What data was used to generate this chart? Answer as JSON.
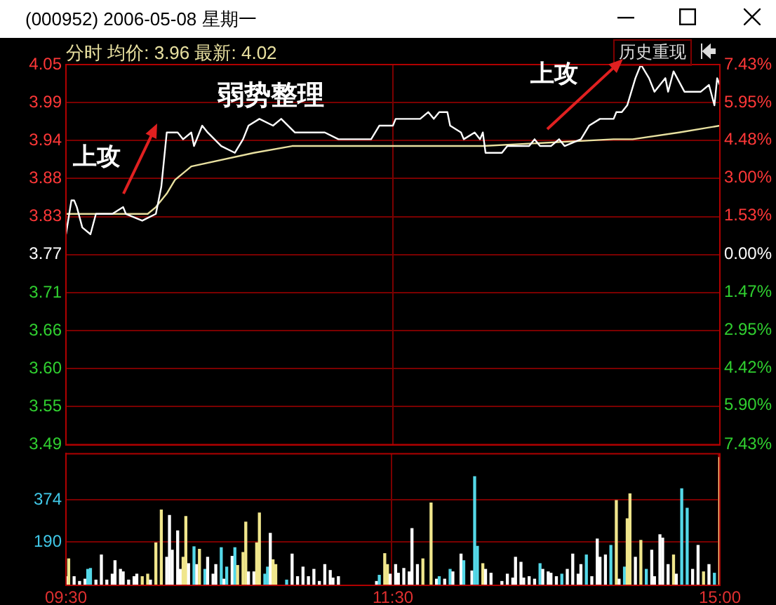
{
  "chart_data": [
    {
      "type": "line",
      "title": "(000952) 2006-05-08 星期一",
      "subtitle": "分时 均价: 3.96 最新: 4.02",
      "annotations": [
        "历史重现",
        "弱势整理",
        "上攻",
        "上攻"
      ],
      "categories": [
        null,
        null,
        null,
        null,
        null,
        null,
        null,
        null,
        null,
        null,
        null,
        null,
        null,
        null,
        null,
        null,
        null,
        null,
        null,
        null,
        null,
        null,
        null,
        null,
        null,
        null,
        null,
        null,
        null,
        null,
        null,
        null,
        null,
        null,
        null,
        null,
        null,
        null,
        null,
        null,
        null,
        null,
        null,
        null,
        null,
        null,
        null,
        null,
        null,
        null,
        null,
        null,
        null,
        null,
        null,
        null,
        null,
        null,
        null,
        null,
        null,
        null,
        null,
        null,
        null,
        null,
        null,
        null,
        null,
        null,
        null,
        null,
        null,
        null,
        null,
        null,
        null,
        null,
        null,
        null,
        null,
        null,
        null,
        null,
        null,
        null,
        null,
        null,
        null,
        null,
        null,
        null,
        null,
        null,
        null,
        null,
        null,
        null,
        null,
        null,
        null,
        null,
        null,
        null,
        null,
        null,
        null,
        null,
        null,
        null,
        null,
        null,
        null,
        null,
        null,
        null,
        null,
        null,
        null,
        null,
        null,
        null,
        null,
        null,
        null,
        null,
        null,
        null,
        null,
        null,
        null,
        null,
        null,
        null,
        null,
        null,
        null,
        null,
        null,
        null,
        null,
        null,
        null,
        null,
        null,
        null,
        null,
        null,
        null,
        null,
        null,
        null,
        null,
        null,
        null,
        null,
        null,
        null,
        null,
        null,
        null,
        null,
        null,
        null,
        null,
        null,
        null,
        null,
        null,
        null,
        null,
        null,
        null,
        null,
        null,
        null,
        null,
        null,
        null,
        null,
        null,
        null,
        null,
        null,
        null,
        null,
        null,
        null,
        null,
        null,
        null,
        null,
        null,
        null,
        null,
        null,
        null,
        null,
        null,
        null,
        null,
        null,
        null,
        null,
        null,
        null,
        null,
        null,
        null,
        null,
        null,
        null,
        null,
        null,
        null,
        null,
        null,
        null,
        null,
        null,
        null,
        null,
        null,
        null,
        null,
        null,
        null,
        null,
        null,
        null,
        null,
        null,
        null,
        null,
        null,
        null,
        null,
        null,
        null,
        null,
        null
      ],
      "ylim": [
        3.49,
        4.05
      ],
      "yticks": [
        4.05,
        {
          "value": 3.994,
          "label": "3.99"
        },
        {
          "value": 3.938,
          "label": "3.94"
        },
        {
          "value": 3.882,
          "label": "3.88"
        },
        {
          "value": 3.826,
          "label": "3.83"
        },
        3.77,
        {
          "value": 3.714,
          "label": "3.71"
        },
        {
          "value": 3.658,
          "label": "3.66"
        },
        {
          "value": 3.602,
          "label": "3.60"
        },
        {
          "value": 3.546,
          "label": "3.55"
        },
        3.49
      ],
      "y2lim": [
        -7.43,
        7.43
      ],
      "y2ticks": [
        {
          "value": 7.43,
          "label": "7.43%"
        },
        {
          "value": 5.95,
          "label": "5.95%"
        },
        {
          "value": 4.48,
          "label": "4.48%"
        },
        {
          "value": 3,
          "label": "3.00%"
        },
        {
          "value": 1.53,
          "label": "1.53%"
        },
        {
          "value": 0,
          "label": "0.00%"
        },
        {
          "value": -1.47,
          "label": "1.47%"
        },
        {
          "value": -2.95,
          "label": "2.95%"
        },
        {
          "value": -4.42,
          "label": "4.42%"
        },
        {
          "value": -5.9,
          "label": "5.90%"
        },
        {
          "value": -7.43,
          "label": "7.43%"
        }
      ],
      "grid": true,
      "tick_labels": "y",
      "series": [
        {
          "color": "#ffffff",
          "values": [
            3.8,
            null,
            3.85,
            3.85,
            3.84,
            null,
            3.81,
            null,
            null,
            3.8,
            null,
            3.83,
            null,
            null,
            3.83,
            null,
            null,
            3.83,
            null,
            null,
            null,
            3.84,
            3.83,
            null,
            null,
            null,
            null,
            null,
            3.82,
            null,
            null,
            null,
            null,
            3.83,
            null,
            3.87,
            null,
            3.95,
            null,
            null,
            null,
            3.95,
            null,
            3.94,
            null,
            null,
            3.95,
            3.93,
            null,
            null,
            3.96,
            null,
            3.95,
            null,
            null,
            null,
            null,
            3.93,
            null,
            null,
            null,
            null,
            3.92,
            null,
            null,
            3.94,
            null,
            3.96,
            null,
            null,
            null,
            3.97,
            null,
            null,
            null,
            null,
            3.96,
            null,
            null,
            3.97,
            null,
            null,
            null,
            null,
            3.95,
            null,
            null,
            null,
            null,
            null,
            null,
            3.95,
            null,
            null,
            null,
            3.95,
            null,
            null,
            null,
            null,
            3.94,
            null,
            null,
            null,
            null,
            null,
            null,
            3.94,
            null,
            null,
            null,
            null,
            3.94,
            null,
            null,
            3.96,
            null,
            null,
            null,
            3.96,
            3.96,
            3.97,
            null,
            null,
            null,
            null,
            null,
            null,
            null,
            null,
            3.97,
            null,
            null,
            3.98,
            null,
            3.97,
            null,
            3.98,
            null,
            null,
            3.98,
            3.96,
            null,
            null,
            null,
            3.95,
            3.94,
            null,
            null,
            null,
            3.95,
            null,
            3.94,
            3.95,
            3.92,
            null,
            null,
            null,
            null,
            null,
            3.92,
            null,
            3.93,
            null,
            null,
            null,
            null,
            null,
            null,
            null,
            3.93,
            null,
            3.94,
            null,
            3.93,
            null,
            null,
            null,
            3.93,
            null,
            null,
            3.94,
            null,
            3.93,
            null,
            null,
            null,
            null,
            null,
            3.94,
            null,
            null,
            3.96,
            null,
            null,
            null,
            3.97,
            null,
            null,
            null,
            null,
            3.97,
            3.98,
            null,
            3.98,
            null,
            3.99,
            null,
            null,
            4.03,
            null,
            4.05,
            null,
            null,
            4.03,
            null,
            4.01,
            null,
            null,
            null,
            4.03,
            4.01,
            null,
            4.04,
            null,
            null,
            null,
            4.01,
            null,
            null,
            null,
            null,
            null,
            4.01,
            null,
            null,
            4.02,
            null,
            3.99,
            4.03,
            4.02
          ]
        },
        {
          "color": "#e8e0a0",
          "values": [
            3.83,
            null,
            null,
            null,
            null,
            null,
            null,
            null,
            null,
            null,
            null,
            null,
            null,
            null,
            null,
            null,
            null,
            null,
            null,
            null,
            null,
            null,
            null,
            null,
            null,
            null,
            null,
            null,
            null,
            null,
            3.83,
            null,
            null,
            3.84,
            null,
            null,
            null,
            3.86,
            null,
            null,
            3.88,
            null,
            null,
            null,
            null,
            null,
            3.9,
            null,
            null,
            null,
            null,
            null,
            null,
            null,
            null,
            null,
            null,
            null,
            null,
            null,
            null,
            null,
            null,
            null,
            null,
            null,
            null,
            null,
            null,
            3.92,
            null,
            null,
            null,
            null,
            null,
            null,
            null,
            null,
            null,
            null,
            null,
            null,
            null,
            3.93,
            null,
            null,
            null,
            null,
            null,
            null,
            null,
            null,
            null,
            null,
            null,
            null,
            null,
            null,
            null,
            null,
            null,
            null,
            null,
            null,
            null,
            null,
            null,
            null,
            null,
            null,
            null,
            null,
            null,
            null,
            null,
            null,
            3.93,
            null,
            null,
            null,
            null,
            null,
            null,
            null,
            null,
            null,
            null,
            null,
            null,
            null,
            null,
            null,
            null,
            null,
            null,
            null,
            null,
            null,
            null,
            null,
            null,
            null,
            null,
            null,
            null,
            null,
            null,
            null,
            null,
            null,
            null,
            null,
            null,
            3.93,
            null,
            null,
            null,
            null,
            null,
            null,
            null,
            null,
            null,
            null,
            null,
            null,
            null,
            null,
            null,
            null,
            null,
            null,
            null,
            null,
            null,
            null,
            null,
            null,
            null,
            null,
            null,
            null,
            null,
            null,
            null,
            null,
            null,
            null,
            null,
            null,
            null,
            null,
            null,
            null,
            null,
            null,
            null,
            null,
            null,
            null,
            null,
            3.94,
            null,
            null,
            null,
            null,
            null,
            null,
            3.94,
            null,
            null,
            null,
            null,
            null,
            null,
            null,
            null,
            null,
            null,
            null,
            null,
            null,
            null,
            null,
            null,
            3.95,
            null,
            null,
            null,
            null,
            null,
            null,
            null,
            null,
            null,
            null,
            null,
            null,
            null,
            null,
            3.96
          ]
        }
      ]
    },
    {
      "type": "bar",
      "categories": [
        "09:30",
        null,
        null,
        null,
        null,
        null,
        null,
        null,
        null,
        null,
        null,
        null,
        null,
        null,
        null,
        null,
        null,
        null,
        null,
        null,
        null,
        null,
        null,
        null,
        null,
        null,
        null,
        null,
        null,
        null,
        null,
        null,
        null,
        null,
        null,
        null,
        null,
        null,
        null,
        null,
        null,
        null,
        null,
        null,
        null,
        null,
        null,
        null,
        null,
        null,
        null,
        null,
        null,
        null,
        null,
        null,
        null,
        null,
        null,
        null,
        null,
        null,
        null,
        null,
        null,
        null,
        null,
        null,
        null,
        null,
        null,
        null,
        null,
        null,
        null,
        null,
        null,
        null,
        null,
        null,
        null,
        null,
        null,
        null,
        null,
        null,
        null,
        null,
        null,
        null,
        null,
        null,
        null,
        null,
        null,
        null,
        null,
        null,
        null,
        null,
        null,
        null,
        null,
        null,
        null,
        null,
        null,
        null,
        null,
        null,
        null,
        null,
        null,
        null,
        null,
        null,
        null,
        null,
        null,
        null,
        "11:30",
        null,
        null,
        null,
        null,
        null,
        null,
        null,
        null,
        null,
        null,
        null,
        null,
        null,
        null,
        null,
        null,
        null,
        null,
        null,
        null,
        null,
        null,
        null,
        null,
        null,
        null,
        null,
        null,
        null,
        null,
        null,
        null,
        null,
        null,
        null,
        null,
        null,
        null,
        null,
        null,
        null,
        null,
        null,
        null,
        null,
        null,
        null,
        null,
        null,
        null,
        null,
        null,
        null,
        null,
        null,
        null,
        null,
        null,
        null,
        null,
        null,
        null,
        null,
        null,
        null,
        null,
        null,
        null,
        null,
        null,
        null,
        null,
        null,
        null,
        null,
        null,
        null,
        null,
        null,
        null,
        null,
        null,
        null,
        null,
        null,
        null,
        null,
        null,
        null,
        null,
        null,
        null,
        null,
        null,
        null,
        null,
        null,
        null,
        null,
        null,
        null,
        null,
        null,
        null,
        null,
        null,
        null,
        null,
        null,
        null,
        null,
        null,
        null,
        null,
        null,
        null,
        null,
        null,
        null,
        "15:00"
      ],
      "ylim": [
        0,
        577
      ],
      "yticks": [
        190,
        374
      ],
      "grid": true,
      "values": [
        38,
        116,
        null,
        38,
        null,
        17,
        null,
        27,
        70,
        74,
        null,
        23,
        null,
        133,
        null,
        23,
        null,
        49,
        108,
        null,
        70,
        59,
        null,
        23,
        null,
        38,
        49,
        null,
        38,
        null,
        49,
        23,
        null,
        186,
        null,
        330,
        null,
        123,
        306,
        154,
        null,
        239,
        70,
        123,
        302,
        95,
        null,
        169,
        91,
        158,
        null,
        70,
        123,
        null,
        49,
        91,
        null,
        165,
        27,
        80,
        null,
        127,
        165,
        87,
        null,
        144,
        277,
        59,
        null,
        59,
        186,
        317,
        null,
        49,
        80,
        228,
        112,
        91,
        null,
        null,
        null,
        23,
        null,
        137,
        null,
        38,
        null,
        80,
        null,
        38,
        null,
        70,
        null,
        17,
        null,
        91,
        null,
        65,
        32,
        null,
        38,
        null,
        null,
        null,
        null,
        null,
        null,
        null,
        null,
        null,
        null,
        null,
        null,
        null,
        17,
        44,
        null,
        139,
        91,
        49,
        null,
        91,
        53,
        null,
        74,
        null,
        59,
        249,
        null,
        91,
        null,
        116,
        null,
        null,
        361,
        null,
        27,
        38,
        null,
        27,
        null,
        70,
        59,
        null,
        null,
        137,
        108,
        null,
        null,
        63,
        476,
        171,
        null,
        95,
        70,
        null,
        53,
        null,
        null,
        null,
        17,
        null,
        49,
        null,
        32,
        123,
        null,
        101,
        32,
        null,
        38,
        null,
        27,
        null,
        95,
        70,
        null,
        59,
        53,
        null,
        38,
        null,
        49,
        null,
        70,
        null,
        137,
        null,
        49,
        91,
        null,
        133,
        null,
        38,
        null,
        203,
        123,
        null,
        133,
        null,
        175,
        null,
        372,
        27,
        null,
        80,
        292,
        401,
        null,
        123,
        null,
        197,
        null,
        70,
        null,
        154,
        38,
        null,
        222,
        207,
        null,
        91,
        null,
        133,
        49,
        null,
        423,
        null,
        338,
        null,
        70,
        null,
        175,
        null,
        59,
        null,
        91,
        null,
        53,
        null,
        560
      ],
      "colors": [
        "#ffffff",
        "#f0e68c",
        null,
        "#ffffff",
        null,
        "#ffffff",
        null,
        "#ffffff",
        "#54d8e8",
        "#54d8e8",
        null,
        "#ffffff",
        null,
        "#ffffff",
        null,
        "#ffffff",
        null,
        "#ffffff",
        "#ffffff",
        null,
        "#ffffff",
        "#ffffff",
        null,
        "#ffffff",
        null,
        "#ffffff",
        "#ffffff",
        null,
        "#f0e68c",
        null,
        "#f0e68c",
        "#ffffff",
        null,
        "#f0e68c",
        null,
        "#f0e68c",
        null,
        "#ffffff",
        "#ffffff",
        "#ffffff",
        null,
        "#ffffff",
        "#ffffff",
        "#f0e68c",
        "#f0e68c",
        "#ffffff",
        null,
        "#54d8e8",
        "#ffffff",
        "#f0e68c",
        null,
        "#54d8e8",
        "#ffffff",
        null,
        "#ffffff",
        "#ffffff",
        null,
        "#54d8e8",
        "#ffffff",
        "#54d8e8",
        null,
        "#ffffff",
        "#54d8e8",
        "#f0e68c",
        null,
        "#f0e68c",
        "#f0e68c",
        "#ffffff",
        null,
        "#ffffff",
        "#f0e68c",
        "#f0e68c",
        null,
        "#54d8e8",
        "#54d8e8",
        "#ffffff",
        "#f0e68c",
        "#f0e68c",
        null,
        null,
        null,
        "#54d8e8",
        null,
        "#ffffff",
        null,
        "#ffffff",
        null,
        "#ffffff",
        null,
        "#ffffff",
        null,
        "#ffffff",
        null,
        "#ffffff",
        null,
        "#ffffff",
        null,
        "#ffffff",
        "#ffffff",
        null,
        "#ffffff",
        null,
        null,
        null,
        null,
        null,
        null,
        null,
        null,
        null,
        null,
        null,
        null,
        null,
        "#ffffff",
        "#54d8e8",
        null,
        "#f0e68c",
        "#f0e68c",
        "#ffffff",
        null,
        "#ffffff",
        "#ffffff",
        null,
        "#ffffff",
        null,
        "#ffffff",
        "#ffffff",
        null,
        "#ffffff",
        null,
        "#f0e68c",
        null,
        null,
        "#f0e68c",
        null,
        "#ffffff",
        "#54d8e8",
        null,
        "#ffffff",
        null,
        "#54d8e8",
        "#ffffff",
        null,
        null,
        "#ffffff",
        "#54d8e8",
        null,
        null,
        "#ffffff",
        "#54d8e8",
        "#54d8e8",
        null,
        "#f0e68c",
        "#ffffff",
        null,
        "#ffffff",
        null,
        null,
        null,
        "#ffffff",
        null,
        "#ffffff",
        null,
        "#ffffff",
        "#ffffff",
        null,
        "#ffffff",
        "#ffffff",
        null,
        "#ffffff",
        null,
        "#ffffff",
        null,
        "#54d8e8",
        "#ffffff",
        null,
        "#ffffff",
        "#ffffff",
        null,
        "#ffffff",
        null,
        "#54d8e8",
        null,
        "#ffffff",
        null,
        "#ffffff",
        null,
        "#ffffff",
        "#ffffff",
        null,
        "#54d8e8",
        null,
        "#ffffff",
        null,
        "#ffffff",
        "#ffffff",
        null,
        "#ffffff",
        null,
        "#54d8e8",
        null,
        "#f0e68c",
        "#ffffff",
        null,
        "#54d8e8",
        "#f0e68c",
        "#f0e68c",
        null,
        "#ffffff",
        null,
        "#f0e68c",
        null,
        "#54d8e8",
        null,
        "#ffffff",
        "#ffffff",
        null,
        "#ffffff",
        "#ffffff",
        null,
        "#ffffff",
        null,
        "#f0e68c",
        "#ffffff",
        null,
        "#54d8e8",
        null,
        "#54d8e8",
        null,
        "#ffffff",
        null,
        "#ffffff",
        null,
        "#f0e68c",
        null,
        "#ffffff",
        null,
        "#54d8e8",
        null,
        "#f0e68c"
      ]
    }
  ]
}
